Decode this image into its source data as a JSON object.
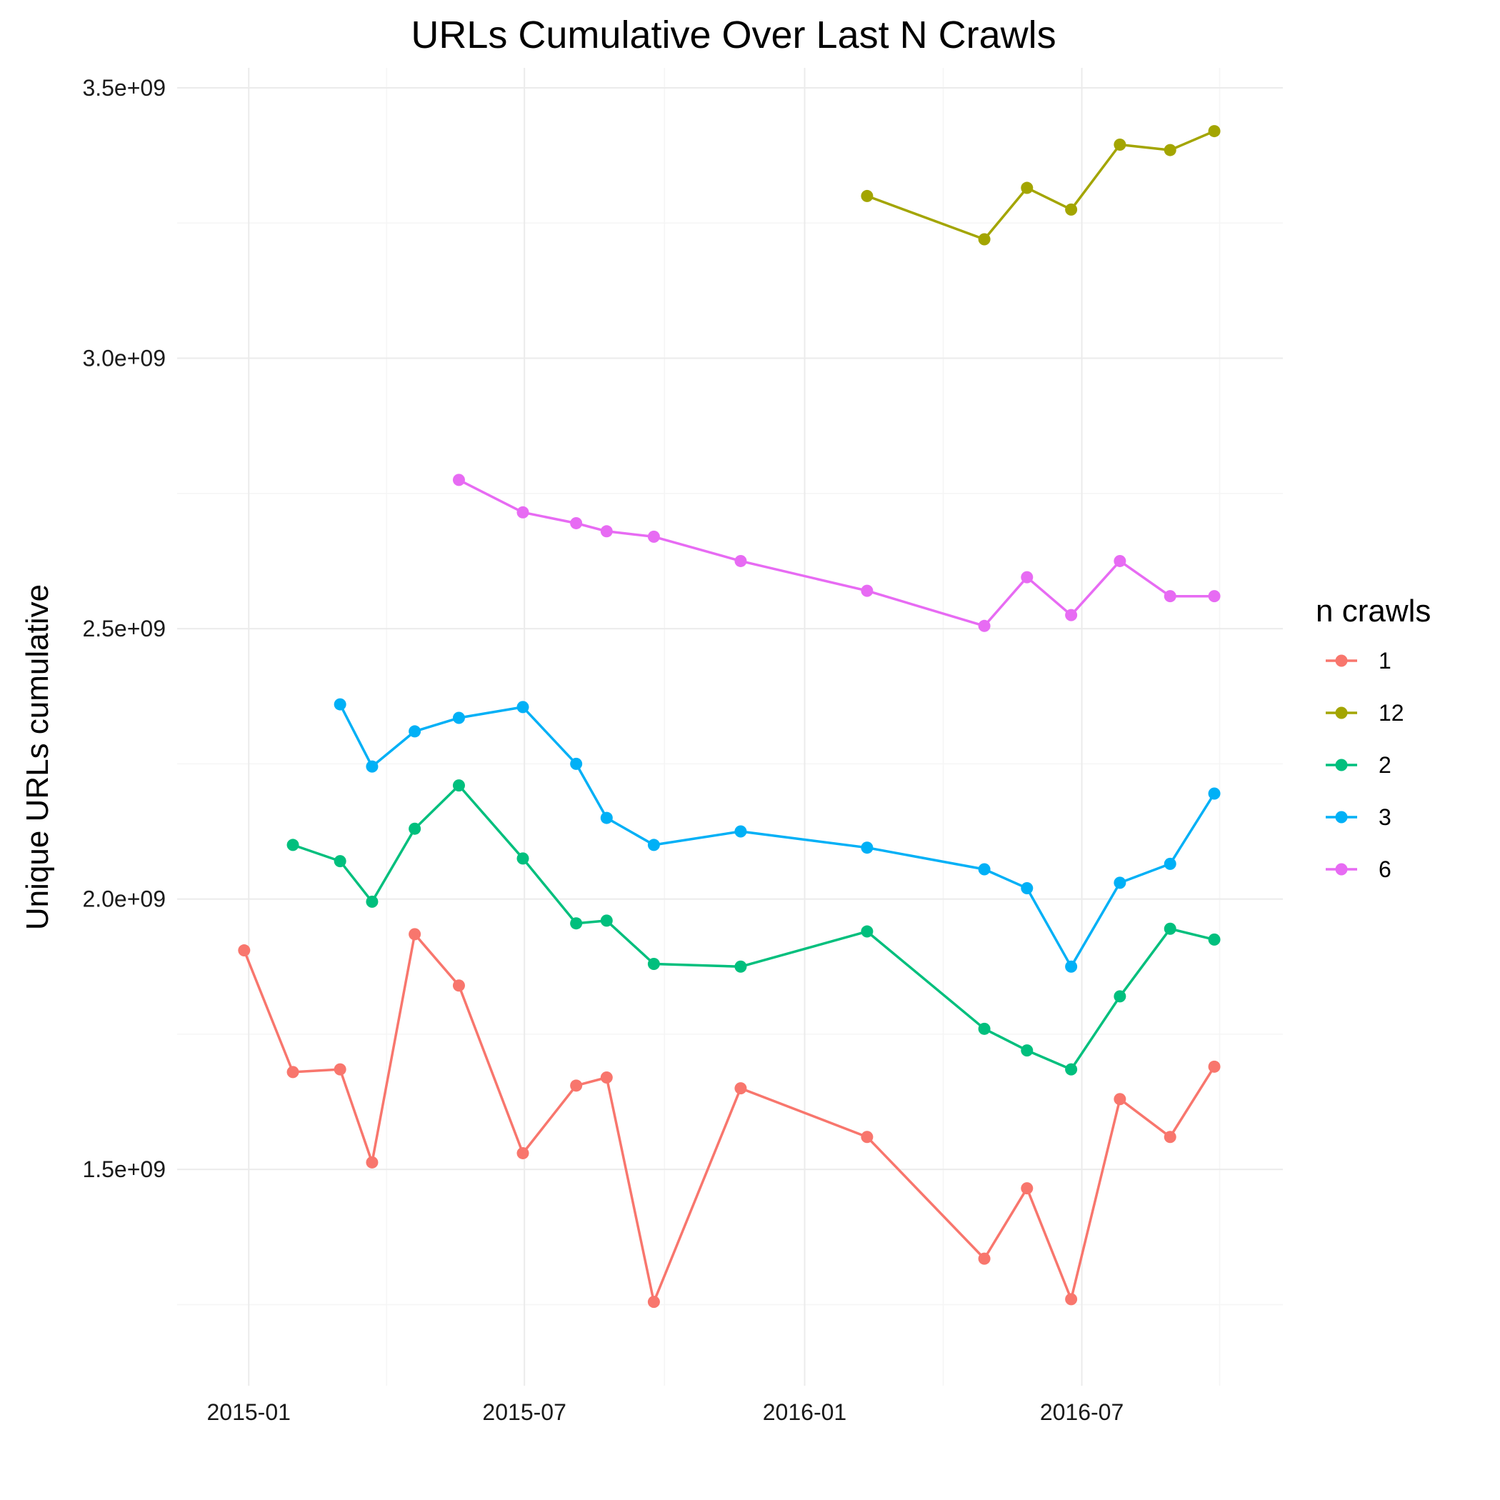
{
  "chart_data": {
    "type": "line",
    "title": "URLs Cumulative Over Last N Crawls",
    "xlabel": "",
    "ylabel": "Unique URLs cumulative",
    "x_axis": {
      "type": "date",
      "range": [
        "2014-11-15",
        "2016-11-10"
      ],
      "ticks": [
        "2015-01",
        "2015-07",
        "2016-01",
        "2016-07"
      ]
    },
    "y_axis": {
      "range": [
        1100000000,
        3500000000
      ],
      "ticks": [
        {
          "value": 1500000000,
          "label": "1.5e+09"
        },
        {
          "value": 2000000000,
          "label": "2.0e+09"
        },
        {
          "value": 2500000000,
          "label": "2.5e+09"
        },
        {
          "value": 3000000000,
          "label": "3.0e+09"
        },
        {
          "value": 3500000000,
          "label": "3.5e+09"
        }
      ]
    },
    "grid": true,
    "legend": {
      "title": "n crawls",
      "position": "right"
    },
    "series": [
      {
        "name": "1",
        "color": "#F8766D",
        "points": [
          [
            "2014-12-29",
            1905000000
          ],
          [
            "2015-01-30",
            1680000000
          ],
          [
            "2015-03-02",
            1685000000
          ],
          [
            "2015-03-23",
            1513000000
          ],
          [
            "2015-04-20",
            1935000000
          ],
          [
            "2015-05-19",
            1840000000
          ],
          [
            "2015-06-30",
            1530000000
          ],
          [
            "2015-08-04",
            1655000000
          ],
          [
            "2015-08-24",
            1670000000
          ],
          [
            "2015-09-24",
            1255000000
          ],
          [
            "2015-11-20",
            1650000000
          ],
          [
            "2016-02-11",
            1560000000
          ],
          [
            "2016-04-28",
            1335000000
          ],
          [
            "2016-05-26",
            1465000000
          ],
          [
            "2016-06-24",
            1260000000
          ],
          [
            "2016-07-26",
            1630000000
          ],
          [
            "2016-08-28",
            1560000000
          ],
          [
            "2016-09-26",
            1690000000
          ]
        ]
      },
      {
        "name": "12",
        "color": "#A3A500",
        "points": [
          [
            "2016-02-11",
            3300000000
          ],
          [
            "2016-04-28",
            3220000000
          ],
          [
            "2016-05-26",
            3315000000
          ],
          [
            "2016-06-24",
            3275000000
          ],
          [
            "2016-07-26",
            3395000000
          ],
          [
            "2016-08-28",
            3385000000
          ],
          [
            "2016-09-26",
            3420000000
          ]
        ]
      },
      {
        "name": "2",
        "color": "#00BF7D",
        "points": [
          [
            "2015-01-30",
            2100000000
          ],
          [
            "2015-03-02",
            2070000000
          ],
          [
            "2015-03-23",
            1995000000
          ],
          [
            "2015-04-20",
            2130000000
          ],
          [
            "2015-05-19",
            2210000000
          ],
          [
            "2015-06-30",
            2075000000
          ],
          [
            "2015-08-04",
            1955000000
          ],
          [
            "2015-08-24",
            1960000000
          ],
          [
            "2015-09-24",
            1880000000
          ],
          [
            "2015-11-20",
            1875000000
          ],
          [
            "2016-02-11",
            1940000000
          ],
          [
            "2016-04-28",
            1760000000
          ],
          [
            "2016-05-26",
            1720000000
          ],
          [
            "2016-06-24",
            1685000000
          ],
          [
            "2016-07-26",
            1820000000
          ],
          [
            "2016-08-28",
            1945000000
          ],
          [
            "2016-09-26",
            1925000000
          ]
        ]
      },
      {
        "name": "3",
        "color": "#00B0F6",
        "points": [
          [
            "2015-03-02",
            2360000000
          ],
          [
            "2015-03-23",
            2245000000
          ],
          [
            "2015-04-20",
            2310000000
          ],
          [
            "2015-05-19",
            2335000000
          ],
          [
            "2015-06-30",
            2355000000
          ],
          [
            "2015-08-04",
            2250000000
          ],
          [
            "2015-08-24",
            2150000000
          ],
          [
            "2015-09-24",
            2100000000
          ],
          [
            "2015-11-20",
            2125000000
          ],
          [
            "2016-02-11",
            2095000000
          ],
          [
            "2016-04-28",
            2055000000
          ],
          [
            "2016-05-26",
            2020000000
          ],
          [
            "2016-06-24",
            1875000000
          ],
          [
            "2016-07-26",
            2030000000
          ],
          [
            "2016-08-28",
            2065000000
          ],
          [
            "2016-09-26",
            2195000000
          ]
        ]
      },
      {
        "name": "6",
        "color": "#E76BF3",
        "points": [
          [
            "2015-05-19",
            2775000000
          ],
          [
            "2015-06-30",
            2715000000
          ],
          [
            "2015-08-04",
            2695000000
          ],
          [
            "2015-08-24",
            2680000000
          ],
          [
            "2015-09-24",
            2670000000
          ],
          [
            "2015-11-20",
            2625000000
          ],
          [
            "2016-02-11",
            2570000000
          ],
          [
            "2016-04-28",
            2505000000
          ],
          [
            "2016-05-26",
            2595000000
          ],
          [
            "2016-06-24",
            2525000000
          ],
          [
            "2016-07-26",
            2625000000
          ],
          [
            "2016-08-28",
            2560000000
          ],
          [
            "2016-09-26",
            2560000000
          ]
        ]
      }
    ]
  }
}
